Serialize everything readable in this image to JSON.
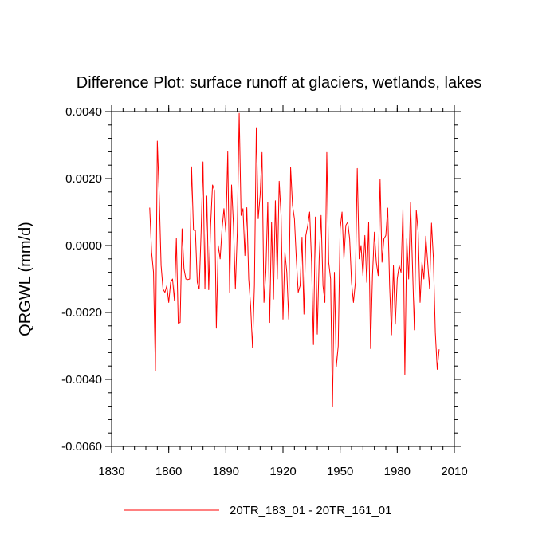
{
  "chart_data": {
    "type": "line",
    "title": "Difference Plot: surface runoff at glaciers, wetlands, lakes",
    "xlabel": "",
    "ylabel": "QRGWL  (mm/d)",
    "xlim": [
      1830,
      2010
    ],
    "ylim": [
      -0.006,
      0.004
    ],
    "x_ticks": [
      1830,
      1860,
      1890,
      1920,
      1950,
      1980,
      2010
    ],
    "x_tick_labels": [
      "1830",
      "1860",
      "1890",
      "1920",
      "1950",
      "1980",
      "2010"
    ],
    "y_ticks": [
      -0.006,
      -0.004,
      -0.002,
      0.0,
      0.002,
      0.004
    ],
    "y_tick_labels": [
      "-0.0060",
      "-0.0040",
      "-0.0020",
      "0.0000",
      "0.0020",
      "0.0040"
    ],
    "legend_position": "bottom-center",
    "series": [
      {
        "name": "20TR_183_01 - 20TR_161_01",
        "color": "#ff0000",
        "x_start": 1850,
        "x_step": 1,
        "values": [
          0.00113,
          -0.0002,
          -0.0008,
          -0.00375,
          0.00312,
          0.0015,
          -0.0006,
          -0.0013,
          -0.0014,
          -0.0012,
          -0.0017,
          -0.0011,
          -0.001,
          -0.00165,
          0.00022,
          -0.00232,
          -0.0023,
          0.0005,
          -0.0007,
          -0.001,
          -0.00102,
          -0.001,
          0.00235,
          0.00046,
          0.00044,
          -0.0011,
          -0.0013,
          0.0004,
          0.0025,
          -0.0013,
          0.00148,
          -0.00132,
          0.0006,
          0.00181,
          0.00165,
          -0.00247,
          0.0,
          -0.0004,
          0.0005,
          0.0011,
          0.0004,
          0.0028,
          -0.0014,
          0.00181,
          0.0006,
          -0.0013,
          0.0004,
          0.00395,
          0.0009,
          0.0011,
          -0.0003,
          0.00113,
          -0.001,
          -0.0018,
          -0.00305,
          -0.0012,
          0.00352,
          0.0008,
          0.0015,
          0.00278,
          -0.0017,
          -0.0008,
          0.00129,
          -0.0023,
          0.0007,
          -0.0016,
          0.00134,
          -0.001,
          0.00192,
          0.0009,
          -0.0022,
          -0.0002,
          -0.0008,
          -0.0022,
          0.00233,
          0.0012,
          0.0008,
          -0.0004,
          -0.0014,
          -0.0012,
          0.00025,
          -0.00205,
          0.0003,
          0.0006,
          0.001,
          -0.0005,
          -0.00296,
          0.00085,
          -0.00265,
          -0.0004,
          0.0009,
          -0.0012,
          -0.0017,
          0.00278,
          -0.0005,
          -0.001,
          -0.0048,
          -0.0008,
          -0.00362,
          -0.003,
          0.0005,
          0.001,
          -0.0004,
          0.0006,
          0.0007,
          0.0002,
          -0.0011,
          -0.0017,
          -0.0011,
          0.0023,
          -0.0004,
          0.0,
          -0.0009,
          0.0003,
          -0.0011,
          0.0007,
          -0.00308,
          -0.0009,
          0.0004,
          -0.0005,
          -0.0009,
          0.00197,
          -0.0005,
          0.0002,
          0.0003,
          0.00112,
          -0.0012,
          -0.00267,
          -0.0006,
          -0.00235,
          -0.001,
          -0.0006,
          -0.0008,
          0.0011,
          -0.00385,
          0.0002,
          -0.001,
          0.00128,
          -0.0006,
          -0.00252,
          0.00106,
          0.0004,
          -0.0017,
          -0.0005,
          -0.001,
          0.00028,
          -0.0005,
          -0.0013,
          0.00067,
          -0.0004,
          -0.0026,
          -0.0037,
          -0.0031
        ]
      }
    ]
  }
}
